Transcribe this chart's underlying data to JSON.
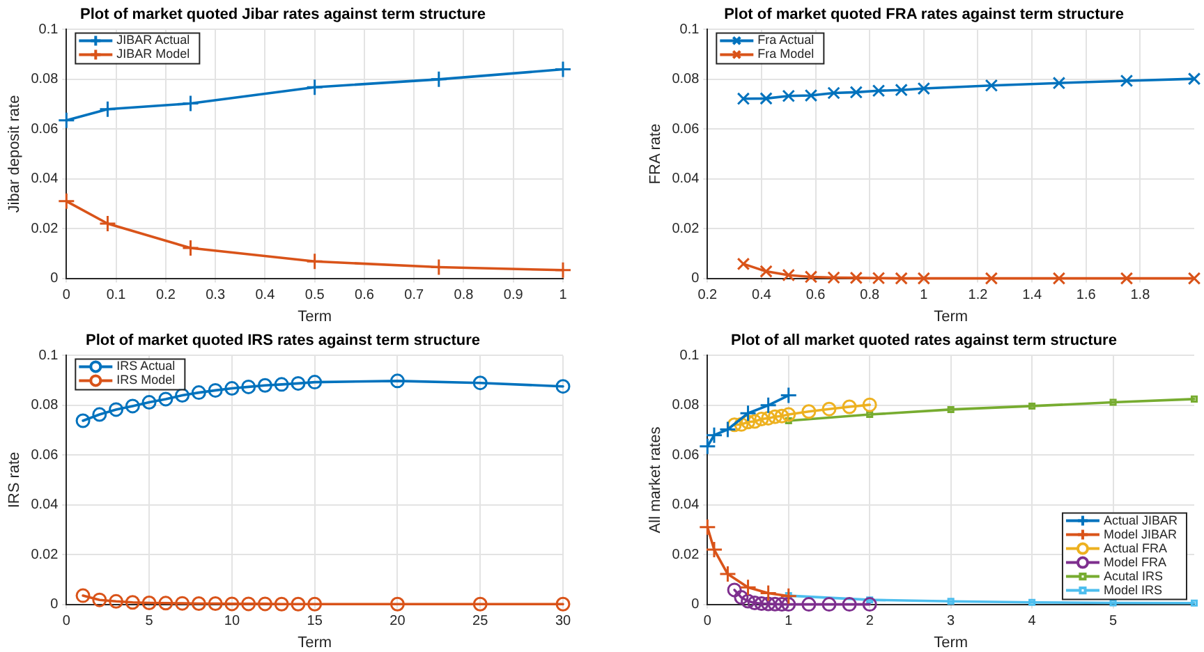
{
  "chart_data": [
    {
      "type": "line",
      "title": "Plot of market quoted Jibar rates against term structure",
      "xlabel": "Term",
      "ylabel": "Jibar deposit rate",
      "xlim": [
        0,
        1
      ],
      "xticks": [
        0,
        0.1,
        0.2,
        0.3,
        0.4,
        0.5,
        0.6,
        0.7,
        0.8,
        0.9,
        1
      ],
      "ylim": [
        0,
        0.1
      ],
      "yticks": [
        0,
        0.02,
        0.04,
        0.06,
        0.08,
        0.1
      ],
      "grid": true,
      "legend": "top left",
      "series": [
        {
          "name": "JIBAR Actual",
          "color": "#0072bd",
          "marker": "cross",
          "x": [
            0,
            0.083,
            0.25,
            0.5,
            0.75,
            1
          ],
          "values": [
            0.0635,
            0.068,
            0.0703,
            0.0768,
            0.08,
            0.084
          ]
        },
        {
          "name": "JIBAR Model",
          "color": "#d95319",
          "marker": "cross",
          "x": [
            0,
            0.083,
            0.25,
            0.5,
            0.75,
            1
          ],
          "values": [
            0.031,
            0.022,
            0.0122,
            0.0068,
            0.0045,
            0.0033
          ]
        }
      ]
    },
    {
      "type": "line",
      "title": "Plot of market quoted FRA rates against term structure",
      "xlabel": "Term",
      "ylabel": "FRA rate",
      "xlim": [
        0.2,
        2
      ],
      "xticks": [
        0.2,
        0.4,
        0.6,
        0.8,
        1,
        1.2,
        1.4,
        1.6,
        1.8
      ],
      "ylim": [
        0,
        0.1
      ],
      "yticks": [
        0,
        0.02,
        0.04,
        0.06,
        0.08,
        0.1
      ],
      "grid": true,
      "legend": "top left",
      "series": [
        {
          "name": "Fra Actual",
          "color": "#0072bd",
          "marker": "x",
          "x": [
            0.333,
            0.417,
            0.5,
            0.583,
            0.667,
            0.75,
            0.833,
            0.917,
            1,
            1.25,
            1.5,
            1.75,
            2
          ],
          "values": [
            0.0722,
            0.0723,
            0.0733,
            0.0735,
            0.0745,
            0.0748,
            0.0754,
            0.0757,
            0.0763,
            0.0775,
            0.0785,
            0.0794,
            0.0802
          ]
        },
        {
          "name": "Fra Model",
          "color": "#d95319",
          "marker": "x",
          "x": [
            0.333,
            0.417,
            0.5,
            0.583,
            0.667,
            0.75,
            0.833,
            0.917,
            1,
            1.25,
            1.5,
            1.75,
            2
          ],
          "values": [
            0.0058,
            0.0028,
            0.0013,
            0.0006,
            0.0003,
            0.0002,
            0.0001,
            0,
            0,
            0,
            0,
            0,
            0
          ]
        }
      ]
    },
    {
      "type": "line",
      "title": "Plot of market quoted IRS rates against term structure",
      "xlabel": "Term",
      "ylabel": "IRS rate",
      "xlim": [
        0,
        30
      ],
      "xticks": [
        0,
        5,
        10,
        15,
        20,
        25,
        30
      ],
      "ylim": [
        0,
        0.1
      ],
      "yticks": [
        0,
        0.02,
        0.04,
        0.06,
        0.08,
        0.1
      ],
      "grid": true,
      "legend": "top left",
      "series": [
        {
          "name": "IRS Actual",
          "color": "#0072bd",
          "marker": "circle",
          "x": [
            1,
            2,
            3,
            4,
            5,
            6,
            7,
            8,
            9,
            10,
            11,
            12,
            13,
            14,
            15,
            20,
            25,
            30
          ],
          "values": [
            0.0738,
            0.0763,
            0.0783,
            0.0797,
            0.0812,
            0.0825,
            0.084,
            0.0851,
            0.086,
            0.0868,
            0.0874,
            0.088,
            0.0884,
            0.0888,
            0.0893,
            0.0898,
            0.089,
            0.0876
          ]
        },
        {
          "name": "IRS Model",
          "color": "#d95319",
          "marker": "circle",
          "x": [
            1,
            2,
            3,
            4,
            5,
            6,
            7,
            8,
            9,
            10,
            11,
            12,
            13,
            14,
            15,
            20,
            25,
            30
          ],
          "values": [
            0.0035,
            0.0018,
            0.0012,
            0.0008,
            0.0006,
            0.0005,
            0.0004,
            0.0003,
            0.0003,
            0.0002,
            0.0002,
            0.0002,
            0.0001,
            0.0001,
            0.0001,
            0.0001,
            0.0001,
            0.0001
          ]
        }
      ]
    },
    {
      "type": "line",
      "title": "Plot of all market quoted rates against term structure",
      "xlabel": "Term",
      "ylabel": "All market rates",
      "xlim": [
        0,
        6
      ],
      "xticks": [
        0,
        1,
        2,
        3,
        4,
        5
      ],
      "ylim": [
        0,
        0.1
      ],
      "yticks": [
        0,
        0.02,
        0.04,
        0.06,
        0.08,
        0.1
      ],
      "grid": true,
      "legend": "bottom right",
      "series": [
        {
          "name": "Actual JIBAR",
          "color": "#0072bd",
          "marker": "cross",
          "x": [
            0,
            0.083,
            0.25,
            0.5,
            0.75,
            1
          ],
          "values": [
            0.0635,
            0.068,
            0.0703,
            0.0768,
            0.08,
            0.084
          ]
        },
        {
          "name": "Model JIBAR",
          "color": "#d95319",
          "marker": "cross",
          "x": [
            0,
            0.083,
            0.25,
            0.5,
            0.75,
            1
          ],
          "values": [
            0.031,
            0.022,
            0.0122,
            0.0068,
            0.0045,
            0.0033
          ]
        },
        {
          "name": "Actual FRA",
          "color": "#edb120",
          "marker": "circle",
          "x": [
            0.333,
            0.417,
            0.5,
            0.583,
            0.667,
            0.75,
            0.833,
            0.917,
            1,
            1.25,
            1.5,
            1.75,
            2
          ],
          "values": [
            0.0722,
            0.0723,
            0.0733,
            0.0735,
            0.0745,
            0.0748,
            0.0754,
            0.0757,
            0.0763,
            0.0775,
            0.0785,
            0.0794,
            0.0802
          ]
        },
        {
          "name": "Model FRA",
          "color": "#7e2f8e",
          "marker": "circle",
          "x": [
            0.333,
            0.417,
            0.5,
            0.583,
            0.667,
            0.75,
            0.833,
            0.917,
            1,
            1.25,
            1.5,
            1.75,
            2
          ],
          "values": [
            0.0058,
            0.0028,
            0.0013,
            0.0006,
            0.0003,
            0.0002,
            0.0001,
            0,
            0,
            0,
            0,
            0,
            0
          ]
        },
        {
          "name": "Acutal IRS",
          "color": "#77ac30",
          "marker": "square",
          "x": [
            1,
            2,
            3,
            4,
            5,
            6
          ],
          "values": [
            0.0738,
            0.0763,
            0.0783,
            0.0797,
            0.0812,
            0.0825
          ]
        },
        {
          "name": "Model IRS",
          "color": "#4dbeee",
          "marker": "square",
          "x": [
            1,
            2,
            3,
            4,
            5,
            6
          ],
          "values": [
            0.0035,
            0.0018,
            0.0012,
            0.0008,
            0.0006,
            0.0005
          ]
        }
      ]
    }
  ]
}
